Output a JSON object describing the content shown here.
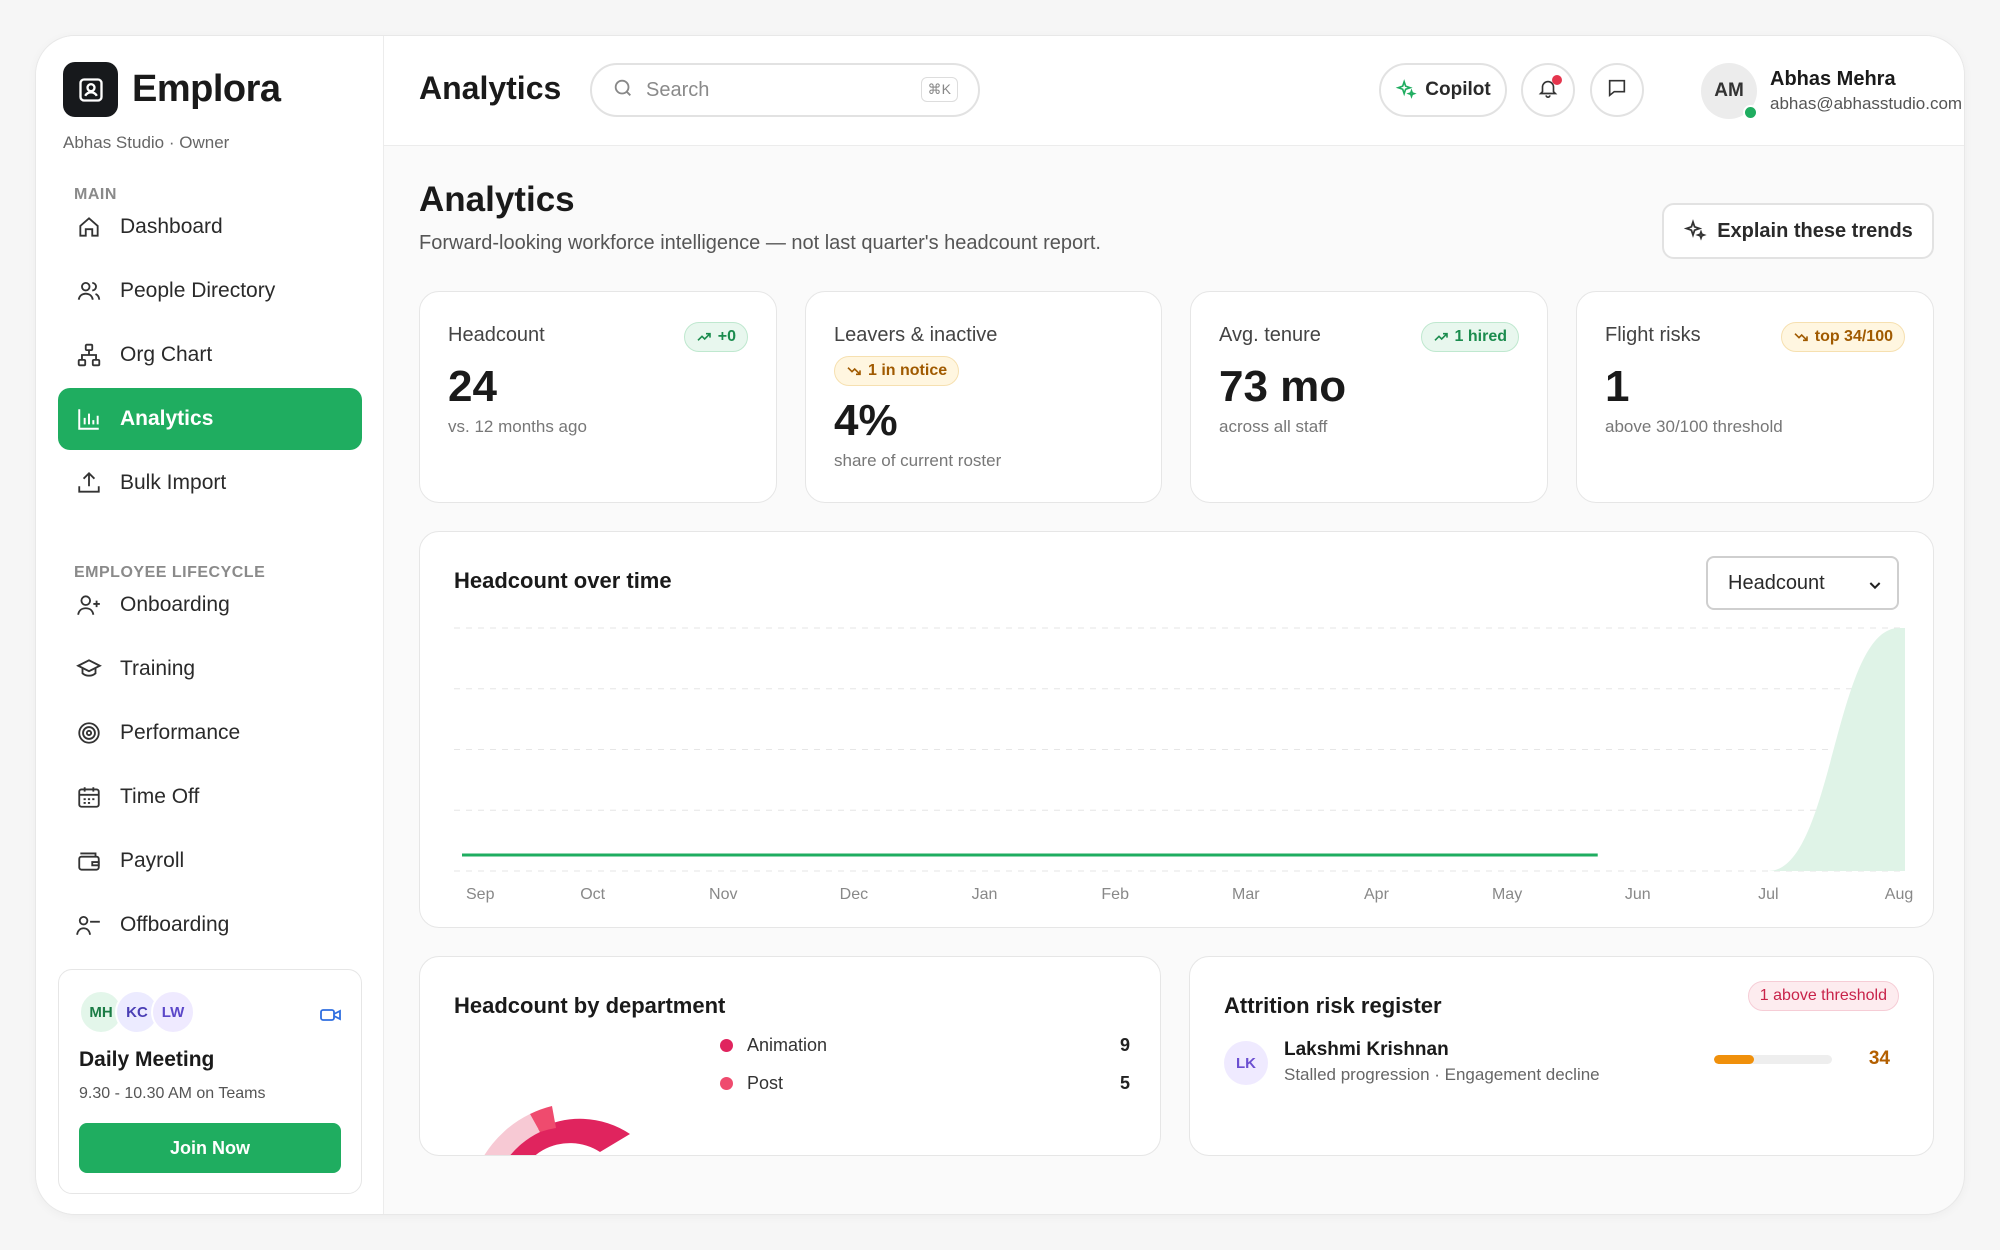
{
  "sidebar": {
    "brand_name": "Emplora",
    "org_line": "Abhas Studio · Owner",
    "sections": {
      "main": "MAIN",
      "lifecycle": "EMPLOYEE LIFECYCLE"
    },
    "main_items": [
      {
        "label": "Dashboard",
        "icon": "home-icon"
      },
      {
        "label": "People Directory",
        "icon": "users-icon"
      },
      {
        "label": "Org Chart",
        "icon": "org-chart-icon"
      },
      {
        "label": "Analytics",
        "icon": "bar-chart-icon",
        "active": true
      },
      {
        "label": "Bulk Import",
        "icon": "upload-icon"
      }
    ],
    "lifecycle_items": [
      {
        "label": "Onboarding",
        "icon": "user-plus-icon"
      },
      {
        "label": "Training",
        "icon": "graduation-cap-icon"
      },
      {
        "label": "Performance",
        "icon": "target-icon"
      },
      {
        "label": "Time Off",
        "icon": "calendar-icon"
      },
      {
        "label": "Payroll",
        "icon": "wallet-icon"
      },
      {
        "label": "Offboarding",
        "icon": "user-minus-icon"
      }
    ],
    "meeting": {
      "avatars": [
        {
          "initials": "MH",
          "bg": "#e3f6ea",
          "fg": "#1b7c45"
        },
        {
          "initials": "KC",
          "bg": "#ecebff",
          "fg": "#4a3fb5"
        },
        {
          "initials": "LW",
          "bg": "#efeaff",
          "fg": "#5b47c9"
        }
      ],
      "title": "Daily Meeting",
      "time": "9.30 - 10.30 AM on Teams",
      "join_label": "Join Now"
    }
  },
  "topbar": {
    "title": "Analytics",
    "search_placeholder": "Search",
    "shortcut": "⌘K",
    "copilot_label": "Copilot",
    "user": {
      "initials": "AM",
      "name": "Abhas Mehra",
      "email": "abhas@abhasstudio.com"
    }
  },
  "page": {
    "title": "Analytics",
    "subtitle": "Forward-looking workforce intelligence — not last quarter's headcount report.",
    "explain_label": "Explain these trends"
  },
  "kpis": [
    {
      "label": "Headcount",
      "value": "24",
      "note": "vs. 12 months ago",
      "badge": "+0",
      "badge_tone": "green"
    },
    {
      "label": "Leavers & inactive",
      "value": "4%",
      "note": "share of current roster",
      "badge": "1 in notice",
      "badge_tone": "amber"
    },
    {
      "label": "Avg. tenure",
      "value": "73 mo",
      "note": "across all staff",
      "badge": "1 hired",
      "badge_tone": "green"
    },
    {
      "label": "Flight risks",
      "value": "1",
      "note": "above 30/100 threshold",
      "badge": "top 34/100",
      "badge_tone": "amber"
    }
  ],
  "headcount_chart": {
    "title": "Headcount over time",
    "selected_metric": "Headcount"
  },
  "chart_data": {
    "type": "area",
    "title": "Headcount over time",
    "categories": [
      "Sep",
      "Oct",
      "Nov",
      "Dec",
      "Jan",
      "Feb",
      "Mar",
      "Apr",
      "May",
      "Jun",
      "Jul",
      "Aug"
    ],
    "series": [
      {
        "values": [
          0,
          0,
          0,
          0,
          0,
          0,
          0,
          0,
          0,
          0,
          0,
          24
        ],
        "color": "#dff3e7"
      }
    ],
    "baseline_line": {
      "from": "Sep",
      "to": "Jun",
      "value": 0,
      "color": "#1fad60"
    },
    "ylim": [
      0,
      24
    ],
    "grid": true
  },
  "dept_card": {
    "title": "Headcount by department",
    "items": [
      {
        "name": "Animation",
        "value": "9",
        "color": "#e0245e"
      },
      {
        "name": "Post",
        "value": "5",
        "color": "#ef4b6e"
      }
    ]
  },
  "attrition": {
    "title": "Attrition risk register",
    "badge": "1 above threshold",
    "rows": [
      {
        "initials": "LK",
        "name": "Lakshmi Krishnan",
        "reason": "Stalled progression · Engagement decline",
        "score": "34",
        "score_fraction": 0.34
      }
    ]
  }
}
